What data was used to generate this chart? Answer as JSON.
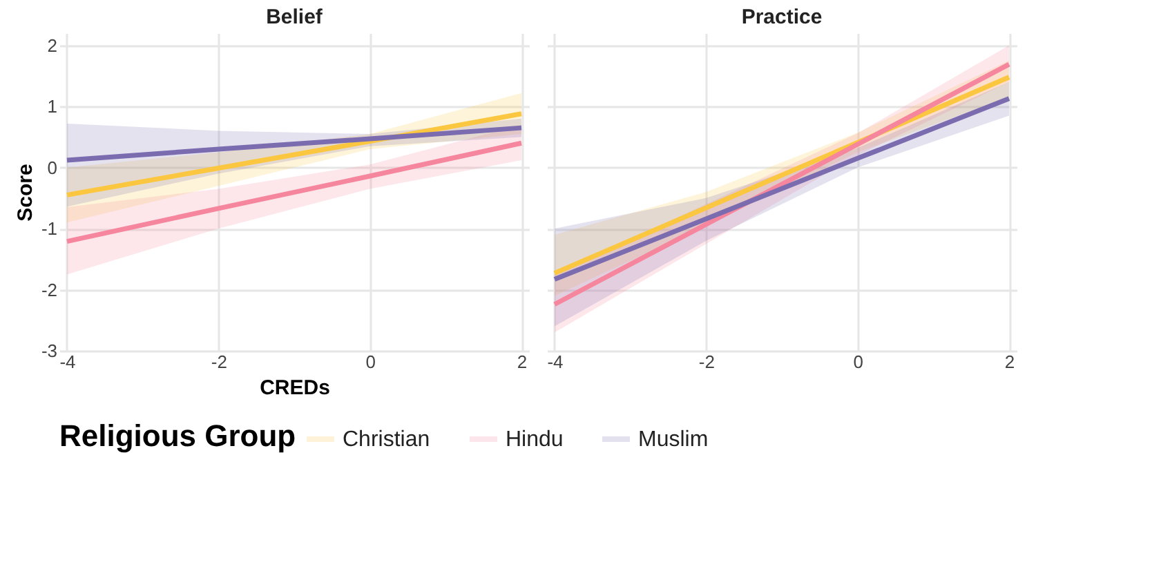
{
  "chart_data": [
    {
      "type": "line",
      "title": "Belief",
      "xlabel": "CREDs",
      "ylabel": "Score",
      "legend_title": "Religious Group",
      "legend": "bottom",
      "grid": true,
      "x": [
        -4,
        -2,
        0,
        2
      ],
      "xlim": [
        -4.1,
        2.1
      ],
      "xticks": [
        -4,
        -2,
        0,
        2
      ],
      "ylim": [
        -3,
        2.2
      ],
      "yticks": [
        -3,
        -2,
        -1,
        0,
        1,
        2
      ],
      "series": [
        {
          "name": "Christian",
          "color": "#fbc740",
          "values": [
            -0.45,
            -0.01,
            0.43,
            0.88
          ],
          "lower": [
            -0.9,
            -0.3,
            0.3,
            0.55
          ],
          "upper": [
            0.0,
            0.25,
            0.55,
            1.22
          ]
        },
        {
          "name": "Hindu",
          "color": "#f5869d",
          "values": [
            -1.21,
            -0.67,
            -0.14,
            0.4
          ],
          "lower": [
            -1.75,
            -1.0,
            -0.35,
            0.12
          ],
          "upper": [
            -0.65,
            -0.35,
            0.05,
            0.7
          ]
        },
        {
          "name": "Muslim",
          "color": "#7b6cb0",
          "values": [
            0.12,
            0.3,
            0.47,
            0.65
          ],
          "lower": [
            -0.64,
            -0.1,
            0.35,
            0.5
          ],
          "upper": [
            0.72,
            0.6,
            0.55,
            0.8
          ]
        }
      ]
    },
    {
      "type": "line",
      "title": "Practice",
      "legend": "bottom",
      "grid": true,
      "tick_labels": "x",
      "x": [
        -4,
        -2,
        0,
        2
      ],
      "xlim": [
        -4.1,
        2.1
      ],
      "xticks": [
        -4,
        -2,
        0,
        2
      ],
      "ylim": [
        -3,
        2.2
      ],
      "yticks": [
        -3,
        -2,
        -1,
        0,
        1,
        2
      ],
      "series": [
        {
          "name": "Christian",
          "color": "#fbc740",
          "values": [
            -1.73,
            -0.66,
            0.41,
            1.48
          ],
          "lower": [
            -2.1,
            -0.95,
            0.25,
            1.15
          ],
          "upper": [
            -1.1,
            -0.4,
            0.57,
            1.75
          ]
        },
        {
          "name": "Hindu",
          "color": "#f5869d",
          "values": [
            -2.24,
            -0.93,
            0.38,
            1.69
          ],
          "lower": [
            -2.7,
            -1.25,
            0.2,
            1.4
          ],
          "upper": [
            -1.75,
            -0.6,
            0.56,
            2.0
          ]
        },
        {
          "name": "Muslim",
          "color": "#7b6cb0",
          "values": [
            -1.83,
            -0.84,
            0.15,
            1.13
          ],
          "lower": [
            -2.6,
            -1.2,
            0.0,
            0.85
          ],
          "upper": [
            -1.0,
            -0.5,
            0.32,
            1.4
          ]
        }
      ]
    }
  ]
}
